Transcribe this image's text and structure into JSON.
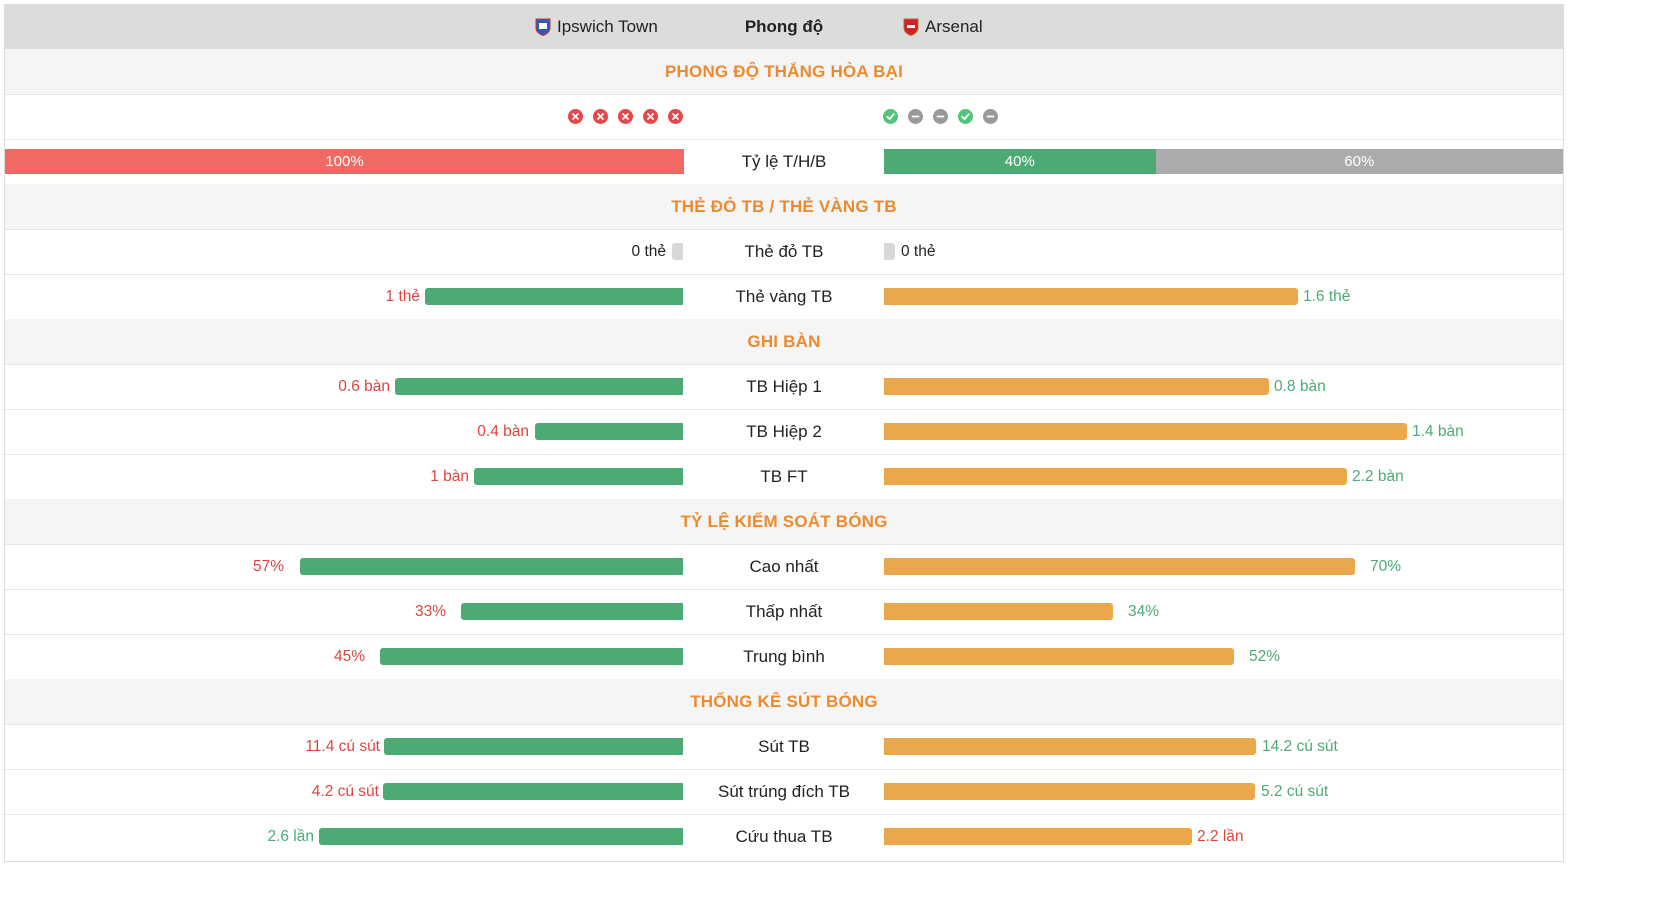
{
  "header": {
    "home_team": "Ipswich Town",
    "center_label": "Phong độ",
    "away_team": "Arsenal"
  },
  "form": {
    "section_title": "PHONG ĐỘ THẮNG HÒA BẠI",
    "home_results": [
      "loss",
      "loss",
      "loss",
      "loss",
      "loss"
    ],
    "away_results": [
      "win",
      "draw",
      "draw",
      "win",
      "draw"
    ],
    "ratio_label": "Tỷ lệ T/H/B",
    "home_ratio": {
      "loss_pct": 100,
      "label": "100%"
    },
    "away_ratio": {
      "win_pct": 40,
      "win_label": "40%",
      "draw_pct": 60,
      "draw_label": "60%"
    }
  },
  "cards": {
    "section_title": "THẺ ĐỎ TB / THẺ VÀNG TB",
    "red": {
      "label": "Thẻ đỏ TB",
      "home": "0 thẻ",
      "away": "0 thẻ"
    },
    "yellow": {
      "label": "Thẻ vàng TB",
      "home": "1 thẻ",
      "away": "1.6 thẻ",
      "home_value": 1,
      "away_value": 1.6
    }
  },
  "goals": {
    "section_title": "GHI BÀN",
    "rows": [
      {
        "label": "TB Hiệp 1",
        "home": "0.6 bàn",
        "away": "0.8 bàn"
      },
      {
        "label": "TB Hiệp 2",
        "home": "0.4 bàn",
        "away": "1.4 bàn"
      },
      {
        "label": "TB FT",
        "home": "1 bàn",
        "away": "2.2 bàn"
      }
    ]
  },
  "possession": {
    "section_title": "TỶ LỆ KIỂM SOÁT BÓNG",
    "rows": [
      {
        "label": "Cao nhất",
        "home": "57%",
        "away": "70%"
      },
      {
        "label": "Thấp nhất",
        "home": "33%",
        "away": "34%"
      },
      {
        "label": "Trung bình",
        "home": "45%",
        "away": "52%"
      }
    ]
  },
  "shots": {
    "section_title": "THỐNG KÊ SÚT BÓNG",
    "rows": [
      {
        "label": "Sút TB",
        "home": "11.4 cú sút",
        "away": "14.2 cú sút"
      },
      {
        "label": "Sút trúng đích TB",
        "home": "4.2 cú sút",
        "away": "5.2 cú sút"
      },
      {
        "label": "Cứu thua TB",
        "home": "2.6 lần",
        "away": "2.2 lần"
      }
    ]
  },
  "colors": {
    "accent_title": "#ee8a2e",
    "home_bar": "#4cab74",
    "away_bar": "#eaa84a",
    "loss": "#e8474a",
    "win": "#52c57a",
    "draw": "#9a9a9a"
  }
}
